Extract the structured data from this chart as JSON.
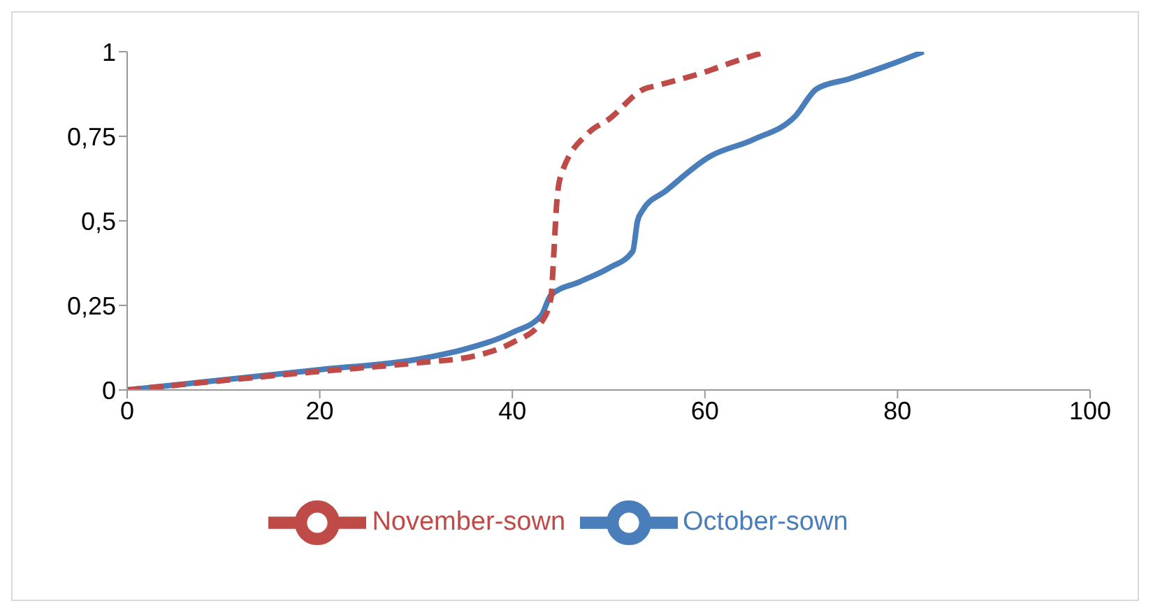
{
  "chart_data": {
    "type": "line",
    "xlim": [
      0,
      100
    ],
    "xticks": [
      0,
      20,
      40,
      60,
      80,
      100
    ],
    "ylim": [
      0,
      1
    ],
    "yticks": [
      0,
      {
        "value": 0.25,
        "label": "0,25"
      },
      {
        "value": 0.5,
        "label": "0,5"
      },
      {
        "value": 0.75,
        "label": "0,75"
      },
      1
    ],
    "grid": false,
    "legend": "bottom",
    "marker": "none",
    "series": [
      {
        "name": "October-sown",
        "color": "#4a7ebb",
        "line_style": "solid",
        "x": [
          0,
          20,
          30,
          35,
          40,
          43,
          44,
          47,
          50,
          52.5,
          53,
          53.5,
          56,
          60.5,
          65,
          69.4,
          71.6,
          75,
          80,
          82.7
        ],
        "values": [
          0,
          0.06,
          0.09,
          0.12,
          0.17,
          0.22,
          0.28,
          0.32,
          0.36,
          0.41,
          0.5,
          0.53,
          0.59,
          0.69,
          0.74,
          0.81,
          0.89,
          0.92,
          0.97,
          1
        ]
      },
      {
        "name": "November-sown",
        "color": "#be4b48",
        "line_style": "dashed",
        "x": [
          0,
          20,
          30,
          36,
          40,
          43,
          44,
          44.3,
          44.6,
          45,
          47.9,
          50,
          53.7,
          55,
          60,
          63,
          66.3
        ],
        "values": [
          0,
          0.055,
          0.08,
          0.1,
          0.14,
          0.2,
          0.27,
          0.4,
          0.55,
          0.63,
          0.76,
          0.8,
          0.89,
          0.9,
          0.94,
          0.97,
          1
        ]
      }
    ]
  }
}
